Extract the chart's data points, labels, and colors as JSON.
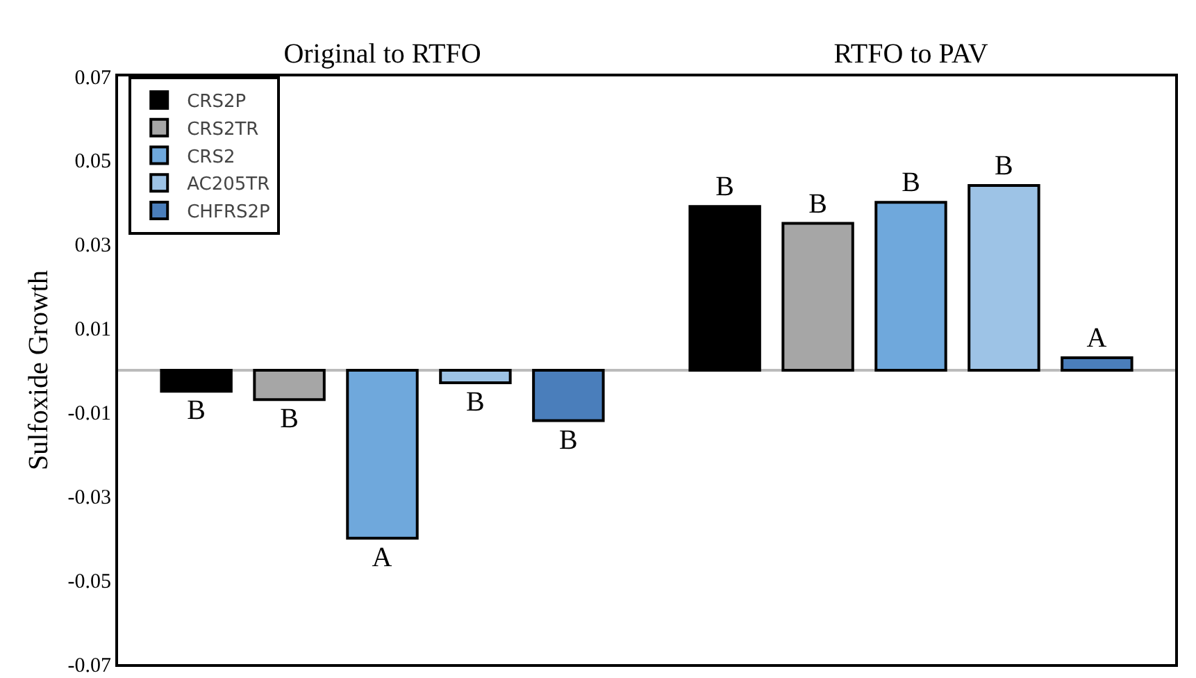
{
  "chart_data": {
    "type": "bar",
    "categories": [
      "Original to RTFO",
      "RTFO to PAV"
    ],
    "ylabel": "Sulfoxide Growth",
    "ylim": [
      -0.07,
      0.07
    ],
    "yticks": [
      -0.07,
      -0.05,
      -0.03,
      -0.01,
      0.01,
      0.03,
      0.05,
      0.07
    ],
    "grid": false,
    "legend": "top left",
    "series": [
      {
        "name": "CRS2P",
        "color": "#000000",
        "values": [
          -0.005,
          0.039
        ],
        "value_labels": [
          "B",
          "B"
        ]
      },
      {
        "name": "CRS2TR",
        "color": "#a6a6a6",
        "values": [
          -0.007,
          0.035
        ],
        "value_labels": [
          "B",
          "B"
        ]
      },
      {
        "name": "CRS2",
        "color": "#6fa8dc",
        "values": [
          -0.04,
          0.04
        ],
        "value_labels": [
          "A",
          "B"
        ]
      },
      {
        "name": "AC205TR",
        "color": "#9dc3e6",
        "values": [
          -0.003,
          0.044
        ],
        "value_labels": [
          "B",
          "B"
        ]
      },
      {
        "name": "CHFRS2P",
        "color": "#4a7ebb",
        "values": [
          -0.012,
          0.003
        ],
        "value_labels": [
          "B",
          "A"
        ]
      }
    ]
  }
}
